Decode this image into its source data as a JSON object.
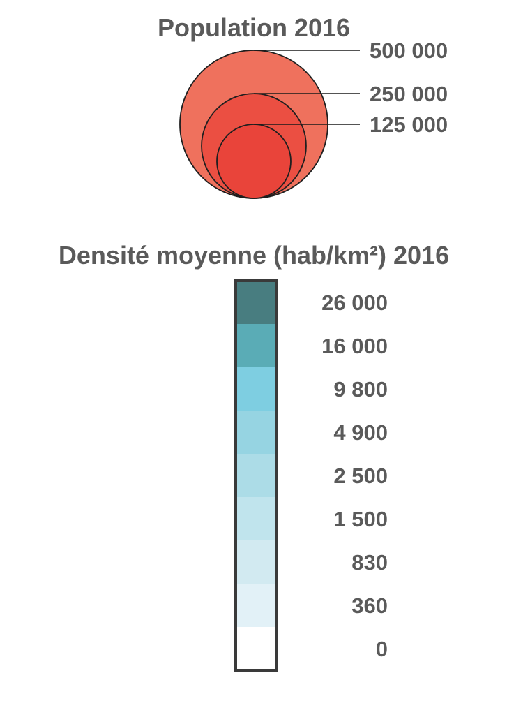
{
  "population_legend": {
    "title": "Population 2016",
    "sizes": [
      {
        "label": "500 000",
        "value": 500000,
        "color": "#ef715d"
      },
      {
        "label": "250 000",
        "value": 250000,
        "color": "#eb4f42"
      },
      {
        "label": "125 000",
        "value": 125000,
        "color": "#e9443a"
      }
    ]
  },
  "density_legend": {
    "title": "Densité moyenne (hab/km²) 2016",
    "classes": [
      {
        "label": "26 000",
        "color": "#487d80"
      },
      {
        "label": "16 000",
        "color": "#5aacb6"
      },
      {
        "label": "9 800",
        "color": "#7ecee1"
      },
      {
        "label": "4 900",
        "color": "#96d4e2"
      },
      {
        "label": "2 500",
        "color": "#acdce7"
      },
      {
        "label": "1 500",
        "color": "#c0e4ed"
      },
      {
        "label": "830",
        "color": "#d2eaf1"
      },
      {
        "label": "360",
        "color": "#e2f1f7"
      },
      {
        "label": "0",
        "color": "#ffffff"
      }
    ]
  }
}
